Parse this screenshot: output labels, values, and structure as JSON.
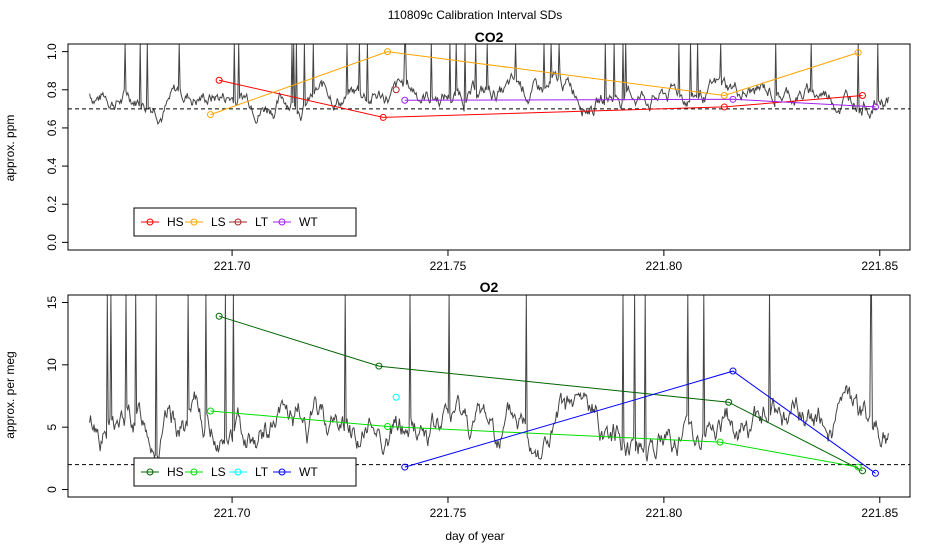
{
  "figure_title": "110809c   Calibration Interval SDs",
  "xlabel": "day of year",
  "chart_data": [
    {
      "type": "line",
      "title": "CO2",
      "xlabel": "",
      "ylabel": "approx. ppm",
      "xlim": [
        221.662,
        221.857
      ],
      "ylim": [
        -0.04,
        1.04
      ],
      "xticks": [
        221.7,
        221.75,
        221.8,
        221.85
      ],
      "xtick_labels": [
        "221.70",
        "221.75",
        "221.80",
        "221.85"
      ],
      "yticks": [
        0.0,
        0.2,
        0.4,
        0.6,
        0.8,
        1.0
      ],
      "ytick_labels": [
        "0.0",
        "0.2",
        "0.4",
        "0.6",
        "0.8",
        "1.0"
      ],
      "reference_line": 0.7,
      "legend": {
        "position": "bottom-left",
        "entries": [
          "HS",
          "LS",
          "LT",
          "WT"
        ]
      },
      "trace": {
        "x_start": 221.667,
        "x_end": 221.852,
        "base": 0.78,
        "amp": 0.1,
        "min": 0.5,
        "max": 1.04,
        "seed": 7
      },
      "series": [
        {
          "name": "HS",
          "color": "#FF0000",
          "x": [
            221.697,
            221.735,
            221.814,
            221.846
          ],
          "y": [
            0.85,
            0.655,
            0.71,
            0.77
          ]
        },
        {
          "name": "LS",
          "color": "#FFA500",
          "x": [
            221.695,
            221.736,
            221.814,
            221.845
          ],
          "y": [
            0.67,
            1.0,
            0.77,
            0.995
          ]
        },
        {
          "name": "LT",
          "color": "#A52A2A",
          "x": [
            221.738
          ],
          "y": [
            0.8
          ]
        },
        {
          "name": "WT",
          "color": "#A020F0",
          "x": [
            221.74,
            221.816,
            221.849
          ],
          "y": [
            0.745,
            0.75,
            0.71
          ]
        }
      ]
    },
    {
      "type": "line",
      "title": "O2",
      "xlabel": "day of year",
      "ylabel": "approx. per meg",
      "xlim": [
        221.662,
        221.857
      ],
      "ylim": [
        -0.6,
        15.6
      ],
      "xticks": [
        221.7,
        221.75,
        221.8,
        221.85
      ],
      "xtick_labels": [
        "221.70",
        "221.75",
        "221.80",
        "221.85"
      ],
      "yticks": [
        0,
        5,
        10,
        15
      ],
      "ytick_labels": [
        "0",
        "5",
        "10",
        "15"
      ],
      "reference_line": 2.0,
      "legend": {
        "position": "bottom-left",
        "entries": [
          "HS",
          "LS",
          "LT",
          "WT"
        ]
      },
      "trace": {
        "x_start": 221.667,
        "x_end": 221.852,
        "base": 5.0,
        "amp": 2.6,
        "min": 1.8,
        "max": 15.6,
        "seed": 13
      },
      "series": [
        {
          "name": "HS",
          "color": "#006400",
          "x": [
            221.697,
            221.734,
            221.815,
            221.846
          ],
          "y": [
            13.9,
            9.9,
            7.0,
            1.5
          ]
        },
        {
          "name": "LS",
          "color": "#00E000",
          "x": [
            221.695,
            221.736,
            221.813,
            221.845
          ],
          "y": [
            6.3,
            5.05,
            3.8,
            1.8
          ]
        },
        {
          "name": "LT",
          "color": "#00FFFF",
          "x": [
            221.738
          ],
          "y": [
            7.4
          ]
        },
        {
          "name": "WT",
          "color": "#0000FF",
          "x": [
            221.74,
            221.816,
            221.849
          ],
          "y": [
            1.8,
            9.5,
            1.3
          ]
        }
      ]
    }
  ]
}
